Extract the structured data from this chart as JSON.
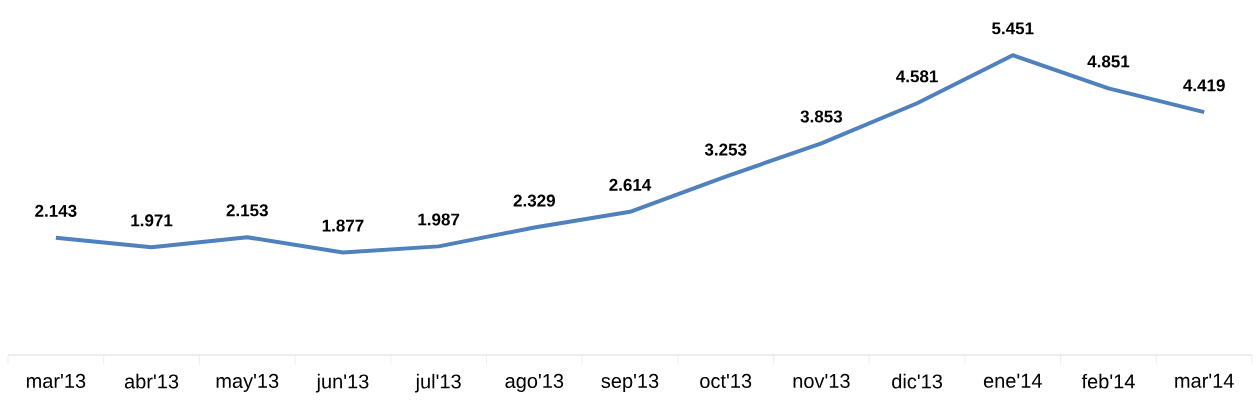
{
  "chart_data": {
    "type": "line",
    "categories": [
      "mar'13",
      "abr'13",
      "may'13",
      "jun'13",
      "jul'13",
      "ago'13",
      "sep'13",
      "oct'13",
      "nov'13",
      "dic'13",
      "ene'14",
      "feb'14",
      "mar'14"
    ],
    "values": [
      2.143,
      1.971,
      2.153,
      1.877,
      1.987,
      2.329,
      2.614,
      3.253,
      3.853,
      4.581,
      5.451,
      4.851,
      4.419
    ],
    "color": "#4f81bd",
    "data_labels": true,
    "marker": "none",
    "line_style": "solid"
  }
}
